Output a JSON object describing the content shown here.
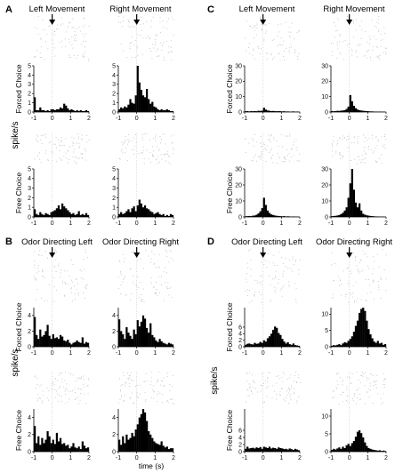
{
  "figure": {
    "panel_letters": [
      "A",
      "B",
      "C",
      "D"
    ],
    "col_titles": {
      "A": [
        "Left Movement",
        "Right Movement"
      ],
      "B": [
        "Odor Directing Left",
        "Odor Directing Right"
      ],
      "C": [
        "Left Movement",
        "Right Movement"
      ],
      "D": [
        "Odor Directing Left",
        "Odor Directing Right"
      ]
    },
    "row_labels": [
      "Forced Choice",
      "Free Choice"
    ],
    "spike_label": "spike/s",
    "time_label": "time (s)"
  },
  "chart_data": [
    {
      "id": "A-forced-left",
      "type": "bar",
      "title": "Left Movement",
      "ylabel": "Forced Choice",
      "bin_width": 0.1,
      "x_start": -1.0,
      "xlim": [
        -1,
        2
      ],
      "xticks": [
        -1,
        0,
        1,
        2
      ],
      "ylim": [
        0,
        5
      ],
      "yticks": [
        0,
        1,
        2,
        3,
        4,
        5
      ],
      "values": [
        1.6,
        0.2,
        0.2,
        0.5,
        0.2,
        0.2,
        0.1,
        0.2,
        0.1,
        0.3,
        0.3,
        0.2,
        0.3,
        0.3,
        0.5,
        0.4,
        0.9,
        0.7,
        0.4,
        0.2,
        0.3,
        0.2,
        0.1,
        0.2,
        0.1,
        0.2,
        0.1,
        0.1,
        0.2,
        0.1
      ]
    },
    {
      "id": "A-forced-right",
      "type": "bar",
      "title": "Right Movement",
      "ylabel": "",
      "bin_width": 0.1,
      "x_start": -1.0,
      "xlim": [
        -1,
        2
      ],
      "xticks": [
        -1,
        0,
        1,
        2
      ],
      "ylim": [
        0,
        5
      ],
      "yticks": [
        0,
        1,
        2,
        3,
        4,
        5
      ],
      "values": [
        0.3,
        0.5,
        0.4,
        0.6,
        0.5,
        0.8,
        1.4,
        1.0,
        0.9,
        1.8,
        5.2,
        3.2,
        2.4,
        1.8,
        1.6,
        2.5,
        1.4,
        0.9,
        1.1,
        0.6,
        0.5,
        0.3,
        0.2,
        0.3,
        0.2,
        0.2,
        0.3,
        0.2,
        0.1,
        0.1
      ]
    },
    {
      "id": "A-free-left",
      "type": "bar",
      "title": "",
      "ylabel": "Free Choice",
      "bin_width": 0.1,
      "x_start": -1.0,
      "xlim": [
        -1,
        2
      ],
      "xticks": [
        -1,
        0,
        1,
        2
      ],
      "ylim": [
        0,
        5
      ],
      "yticks": [
        0,
        1,
        2,
        3,
        4,
        5
      ],
      "values": [
        0.8,
        0.3,
        0.2,
        0.5,
        0.3,
        0.2,
        0.4,
        0.3,
        0.2,
        0.5,
        0.6,
        0.7,
        0.9,
        1.2,
        0.8,
        1.4,
        1.1,
        0.9,
        0.7,
        0.5,
        0.3,
        0.4,
        0.2,
        0.3,
        0.6,
        0.2,
        0.3,
        0.2,
        0.4,
        0.2
      ]
    },
    {
      "id": "A-free-right",
      "type": "bar",
      "title": "",
      "ylabel": "",
      "bin_width": 0.1,
      "x_start": -1.0,
      "xlim": [
        -1,
        2
      ],
      "xticks": [
        -1,
        0,
        1,
        2
      ],
      "ylim": [
        0,
        5
      ],
      "yticks": [
        0,
        1,
        2,
        3,
        4,
        5
      ],
      "values": [
        0.3,
        0.5,
        0.3,
        0.4,
        0.6,
        0.8,
        0.5,
        0.9,
        1.1,
        0.6,
        1.2,
        1.8,
        1.4,
        1.0,
        1.2,
        0.9,
        0.8,
        0.6,
        0.5,
        0.3,
        0.4,
        0.5,
        0.3,
        0.2,
        0.3,
        0.1,
        0.2,
        0.1,
        0.3,
        0.2
      ]
    },
    {
      "id": "B-forced-left",
      "type": "bar",
      "title": "Odor Directing Left",
      "ylabel": "Forced Choice",
      "bin_width": 0.1,
      "x_start": -1.0,
      "xlim": [
        -1,
        2
      ],
      "xticks": [
        -1,
        0,
        1,
        2
      ],
      "ylim": [
        0,
        5
      ],
      "yticks": [
        0,
        2,
        4
      ],
      "values": [
        3.8,
        1.5,
        1.0,
        2.2,
        1.3,
        1.5,
        2.0,
        2.8,
        1.4,
        1.0,
        1.6,
        1.1,
        1.2,
        1.0,
        1.5,
        1.3,
        0.8,
        0.7,
        0.9,
        0.5,
        0.3,
        0.5,
        0.6,
        0.8,
        0.6,
        0.5,
        1.2,
        0.4,
        0.6,
        0.5
      ]
    },
    {
      "id": "B-forced-right",
      "type": "bar",
      "title": "Odor Directing Right",
      "ylabel": "",
      "bin_width": 0.1,
      "x_start": -1.0,
      "xlim": [
        -1,
        2
      ],
      "xticks": [
        -1,
        0,
        1,
        2
      ],
      "ylim": [
        0,
        5
      ],
      "yticks": [
        0,
        2,
        4
      ],
      "values": [
        3.5,
        2.0,
        1.6,
        1.0,
        2.5,
        1.8,
        1.4,
        1.0,
        2.2,
        1.6,
        3.4,
        2.6,
        3.2,
        4.0,
        3.6,
        2.4,
        1.8,
        3.0,
        1.5,
        1.2,
        0.8,
        0.6,
        1.0,
        0.7,
        0.5,
        0.4,
        0.3,
        0.5,
        0.4,
        0.3
      ]
    },
    {
      "id": "B-free-left",
      "type": "bar",
      "title": "",
      "ylabel": "Free Choice",
      "bin_width": 0.1,
      "x_start": -1.0,
      "xlim": [
        -1,
        2
      ],
      "xticks": [
        -1,
        0,
        1,
        2
      ],
      "ylim": [
        0,
        5
      ],
      "yticks": [
        0,
        2,
        4
      ],
      "values": [
        3.0,
        1.0,
        1.8,
        0.8,
        1.6,
        1.0,
        1.4,
        2.4,
        1.8,
        1.0,
        1.4,
        0.9,
        2.2,
        1.2,
        1.6,
        0.9,
        1.0,
        0.7,
        0.8,
        0.4,
        0.6,
        1.0,
        0.5,
        0.4,
        0.6,
        0.3,
        1.2,
        0.7,
        0.4,
        0.5
      ]
    },
    {
      "id": "B-free-right",
      "type": "bar",
      "title": "",
      "ylabel": "",
      "bin_width": 0.1,
      "x_start": -1.0,
      "xlim": [
        -1,
        2
      ],
      "xticks": [
        -1,
        0,
        1,
        2
      ],
      "ylim": [
        0,
        5
      ],
      "yticks": [
        0,
        2,
        4
      ],
      "values": [
        1.4,
        0.8,
        1.8,
        1.0,
        2.0,
        1.4,
        1.6,
        2.2,
        1.8,
        2.6,
        3.2,
        4.0,
        4.4,
        5.2,
        4.6,
        3.6,
        2.4,
        2.0,
        1.6,
        1.2,
        1.0,
        0.9,
        0.8,
        1.2,
        0.7,
        0.5,
        0.6,
        0.3,
        0.4,
        0.4
      ]
    },
    {
      "id": "C-forced-left",
      "type": "bar",
      "title": "Left Movement",
      "ylabel": "Forced Choice",
      "bin_width": 0.1,
      "x_start": -1.0,
      "xlim": [
        -1,
        2
      ],
      "xticks": [
        -1,
        0,
        1,
        2
      ],
      "ylim": [
        0,
        30
      ],
      "yticks": [
        0,
        10,
        20,
        30
      ],
      "values": [
        0.5,
        0.6,
        0.4,
        0.6,
        0.5,
        0.6,
        0.5,
        0.8,
        0.7,
        0.9,
        2.8,
        1.6,
        1.0,
        0.8,
        0.6,
        0.7,
        0.6,
        0.5,
        0.6,
        0.5,
        0.4,
        0.5,
        0.3,
        0.4,
        0.2,
        0.3,
        0.4,
        0.2,
        0.3,
        0.2
      ]
    },
    {
      "id": "C-forced-right",
      "type": "bar",
      "title": "Right Movement",
      "ylabel": "",
      "bin_width": 0.1,
      "x_start": -1.0,
      "xlim": [
        -1,
        2
      ],
      "xticks": [
        -1,
        0,
        1,
        2
      ],
      "ylim": [
        0,
        30
      ],
      "yticks": [
        0,
        10,
        20,
        30
      ],
      "values": [
        0.6,
        0.5,
        0.6,
        0.8,
        0.7,
        0.9,
        1.0,
        1.2,
        2.0,
        3.5,
        11.0,
        7.0,
        4.0,
        2.5,
        1.6,
        1.2,
        1.0,
        0.8,
        0.7,
        0.6,
        0.5,
        0.4,
        0.4,
        0.3,
        0.3,
        0.2,
        0.3,
        0.2,
        0.2,
        0.1
      ]
    },
    {
      "id": "C-free-left",
      "type": "bar",
      "title": "",
      "ylabel": "Free Choice",
      "bin_width": 0.1,
      "x_start": -1.0,
      "xlim": [
        -1,
        2
      ],
      "xticks": [
        -1,
        0,
        1,
        2
      ],
      "ylim": [
        0,
        30
      ],
      "yticks": [
        0,
        10,
        20,
        30
      ],
      "values": [
        0.4,
        0.5,
        0.6,
        0.5,
        0.8,
        0.9,
        1.4,
        2.2,
        3.5,
        5.5,
        12.0,
        7.5,
        4.0,
        2.5,
        1.6,
        1.2,
        0.9,
        0.7,
        0.6,
        0.5,
        0.4,
        0.5,
        0.3,
        0.4,
        0.3,
        0.2,
        0.3,
        0.2,
        0.2,
        0.1
      ]
    },
    {
      "id": "C-free-right",
      "type": "bar",
      "title": "",
      "ylabel": "",
      "bin_width": 0.1,
      "x_start": -1.0,
      "xlim": [
        -1,
        2
      ],
      "xticks": [
        -1,
        0,
        1,
        2
      ],
      "ylim": [
        0,
        30
      ],
      "yticks": [
        0,
        10,
        20,
        30
      ],
      "values": [
        0.5,
        0.6,
        0.7,
        0.9,
        1.2,
        1.8,
        2.6,
        4.0,
        6.0,
        12.0,
        21.0,
        30.0,
        17.0,
        9.0,
        6.0,
        8.5,
        4.0,
        2.0,
        1.4,
        1.0,
        0.8,
        0.6,
        0.5,
        0.4,
        0.3,
        0.3,
        0.2,
        0.2,
        0.2,
        0.1
      ]
    },
    {
      "id": "D-forced-left",
      "type": "bar",
      "title": "Odor Directing Left",
      "ylabel": "Forced Choice",
      "bin_width": 0.1,
      "x_start": -1.0,
      "xlim": [
        -1,
        2
      ],
      "xticks": [
        -1,
        0,
        1,
        2
      ],
      "ylim": [
        0,
        12
      ],
      "yticks": [
        0,
        2,
        4,
        6
      ],
      "values": [
        0.6,
        0.9,
        1.0,
        0.8,
        0.7,
        1.2,
        0.9,
        1.0,
        1.5,
        1.2,
        2.0,
        1.6,
        2.6,
        3.2,
        4.0,
        5.2,
        6.2,
        5.8,
        4.2,
        3.6,
        2.4,
        1.6,
        1.0,
        1.4,
        0.8,
        0.6,
        1.0,
        0.5,
        0.4,
        0.3
      ]
    },
    {
      "id": "D-forced-right",
      "type": "bar",
      "title": "Odor Directing Right",
      "ylabel": "",
      "bin_width": 0.1,
      "x_start": -1.0,
      "xlim": [
        -1,
        2
      ],
      "xticks": [
        -1,
        0,
        1,
        2
      ],
      "ylim": [
        0,
        12
      ],
      "yticks": [
        0,
        5,
        10
      ],
      "values": [
        0.3,
        0.5,
        0.4,
        0.6,
        0.8,
        0.5,
        1.0,
        1.4,
        1.2,
        1.8,
        2.4,
        3.2,
        4.6,
        6.4,
        8.0,
        10.4,
        11.6,
        12.2,
        11.0,
        8.0,
        5.4,
        3.8,
        2.6,
        1.6,
        1.2,
        1.8,
        1.0,
        1.2,
        0.6,
        0.8
      ]
    },
    {
      "id": "D-free-left",
      "type": "bar",
      "title": "",
      "ylabel": "Free Choice",
      "bin_width": 0.1,
      "x_start": -1.0,
      "xlim": [
        -1,
        2
      ],
      "xticks": [
        -1,
        0,
        1,
        2
      ],
      "ylim": [
        0,
        12
      ],
      "yticks": [
        0,
        2,
        4,
        6
      ],
      "values": [
        0.8,
        1.4,
        0.9,
        1.0,
        1.1,
        0.9,
        1.2,
        1.0,
        1.3,
        0.8,
        1.4,
        1.2,
        1.0,
        1.4,
        0.9,
        1.1,
        1.0,
        0.8,
        1.2,
        1.0,
        0.9,
        0.7,
        0.8,
        0.6,
        0.9,
        0.7,
        0.5,
        0.8,
        0.6,
        0.4
      ]
    },
    {
      "id": "D-free-right",
      "type": "bar",
      "title": "",
      "ylabel": "",
      "bin_width": 0.1,
      "x_start": -1.0,
      "xlim": [
        -1,
        2
      ],
      "xticks": [
        -1,
        0,
        1,
        2
      ],
      "ylim": [
        0,
        12
      ],
      "yticks": [
        0,
        5,
        10
      ],
      "values": [
        0.5,
        0.8,
        0.6,
        0.9,
        1.2,
        0.8,
        1.4,
        1.0,
        1.8,
        2.2,
        1.6,
        2.4,
        3.0,
        4.2,
        5.6,
        6.0,
        5.2,
        4.0,
        2.6,
        1.6,
        1.0,
        0.8,
        0.6,
        0.5,
        0.4,
        0.3,
        0.4,
        0.2,
        0.3,
        0.2
      ]
    }
  ]
}
